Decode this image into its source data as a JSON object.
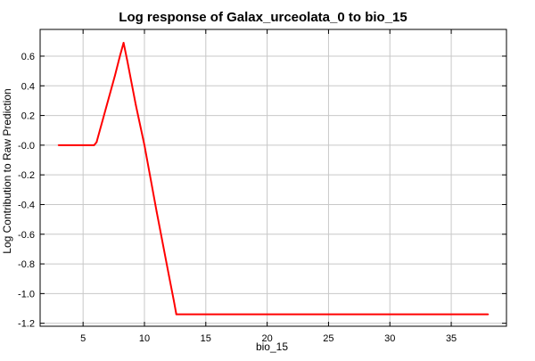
{
  "chart_data": {
    "type": "line",
    "title": "Log response of Galax_urceolata_0 to bio_15",
    "xlabel": "bio_15",
    "ylabel": "Log Contribution to Raw Prediction",
    "xlim": [
      1.5,
      39.5
    ],
    "ylim": [
      -1.22,
      0.78
    ],
    "xticks": [
      5,
      10,
      15,
      20,
      25,
      30,
      35
    ],
    "xtick_labels": [
      "5",
      "10",
      "15",
      "20",
      "25",
      "30",
      "35"
    ],
    "yticks": [
      0.6,
      0.4,
      0.2,
      0.0,
      -0.2,
      -0.4,
      -0.6,
      -0.8,
      -1.0,
      -1.2
    ],
    "ytick_labels": [
      "0.6",
      "0.4",
      "0.2",
      "-0.0",
      "-0.2",
      "-0.4",
      "-0.6",
      "-0.8",
      "-1.0",
      "-1.2"
    ],
    "grid": true,
    "colors": {
      "line": "#ff0000",
      "grid": "#c8c8c8",
      "axes": "#000000"
    },
    "series": [
      {
        "x": [
          3.0,
          5.9,
          6.1,
          7.6,
          8.0,
          8.3,
          8.6,
          9.3,
          10.0,
          11.0,
          12.0,
          12.4,
          12.6,
          38.0
        ],
        "values": [
          0.0,
          0.0,
          0.02,
          0.47,
          0.6,
          0.69,
          0.57,
          0.27,
          0.0,
          -0.45,
          -0.88,
          -1.05,
          -1.14,
          -1.14
        ]
      }
    ]
  }
}
